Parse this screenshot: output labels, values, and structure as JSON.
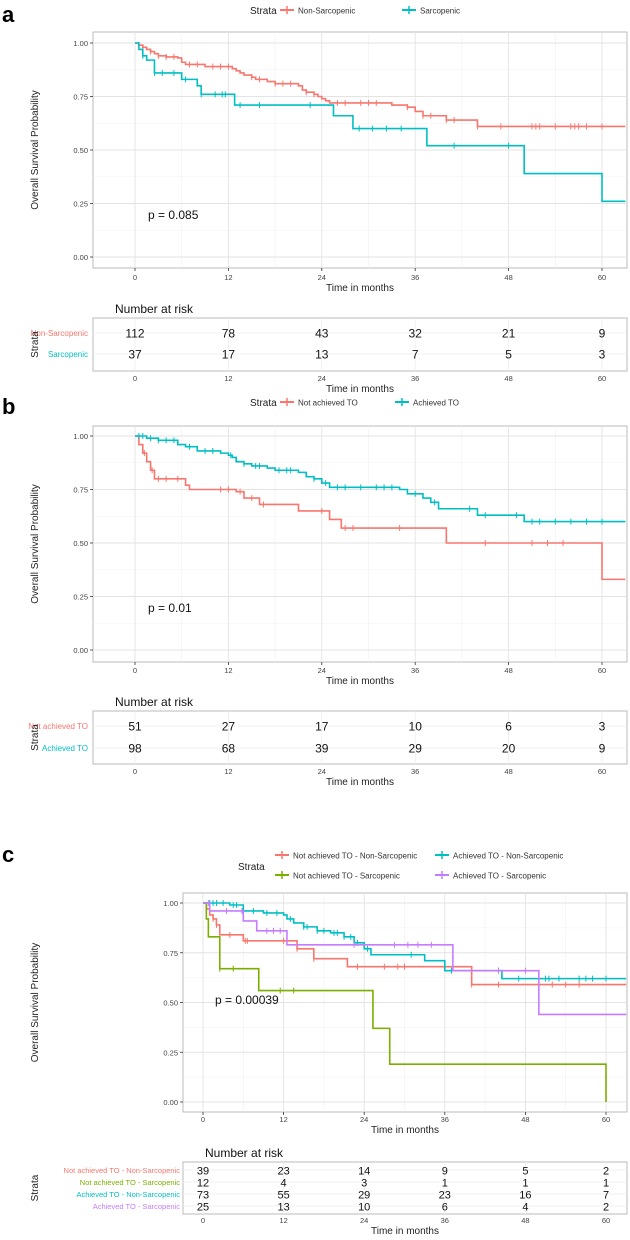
{
  "chart_data": [
    {
      "panel": "a",
      "type": "line",
      "subtype": "kaplan-meier",
      "legend_title": "Strata",
      "xlabel": "Time in months",
      "ylabel": "Overall Survival Probability",
      "xticks": [
        0,
        12,
        24,
        36,
        48,
        60
      ],
      "yticks": [
        "0.00",
        "0.25",
        "0.50",
        "0.75",
        "1.00"
      ],
      "xlim": [
        0,
        63
      ],
      "ylim": [
        0,
        1
      ],
      "pvalue": "p = 0.085",
      "series": [
        {
          "name": "Non-Sarcopenic",
          "color": "#F8766D",
          "steps": [
            [
              0,
              1
            ],
            [
              0.5,
              0.99
            ],
            [
              1,
              0.98
            ],
            [
              1.5,
              0.97
            ],
            [
              2,
              0.96
            ],
            [
              2.5,
              0.95
            ],
            [
              3,
              0.94
            ],
            [
              4,
              0.935
            ],
            [
              5.5,
              0.93
            ],
            [
              6,
              0.91
            ],
            [
              6.5,
              0.9
            ],
            [
              9,
              0.89
            ],
            [
              12.5,
              0.88
            ],
            [
              13,
              0.87
            ],
            [
              13.5,
              0.86
            ],
            [
              14,
              0.85
            ],
            [
              15,
              0.84
            ],
            [
              15.5,
              0.83
            ],
            [
              17,
              0.82
            ],
            [
              18,
              0.81
            ],
            [
              21,
              0.8
            ],
            [
              21.5,
              0.78
            ],
            [
              22,
              0.77
            ],
            [
              23,
              0.76
            ],
            [
              23.5,
              0.75
            ],
            [
              24,
              0.74
            ],
            [
              24.5,
              0.73
            ],
            [
              25,
              0.72
            ],
            [
              33,
              0.71
            ],
            [
              35,
              0.7
            ],
            [
              36,
              0.68
            ],
            [
              37,
              0.66
            ],
            [
              40,
              0.64
            ],
            [
              44,
              0.61
            ]
          ],
          "censor": [
            1,
            2,
            3,
            4,
            5,
            7,
            8,
            10,
            11,
            12,
            15,
            16,
            18,
            19,
            20,
            22,
            23,
            26,
            27,
            29,
            30,
            31,
            35,
            37,
            38,
            40,
            41,
            44,
            47,
            51,
            51.5,
            52,
            54,
            56,
            56.5,
            57,
            58,
            60
          ]
        },
        {
          "name": "Sarcopenic",
          "color": "#00BFC4",
          "steps": [
            [
              0,
              1
            ],
            [
              0.5,
              0.97
            ],
            [
              1,
              0.94
            ],
            [
              1.5,
              0.92
            ],
            [
              2.5,
              0.86
            ],
            [
              6,
              0.83
            ],
            [
              8,
              0.8
            ],
            [
              8.5,
              0.76
            ],
            [
              12.8,
              0.71
            ],
            [
              25.5,
              0.66
            ],
            [
              28,
              0.6
            ],
            [
              37.5,
              0.52
            ],
            [
              50,
              0.39
            ],
            [
              60,
              0.26
            ]
          ],
          "censor": [
            1,
            2.5,
            3.5,
            5,
            6.5,
            8.5,
            10.3,
            11.2,
            11.6,
            13.5,
            16,
            22.5,
            28.8,
            30.5,
            32.3,
            34.2,
            41,
            48
          ]
        }
      ],
      "risk_table": {
        "title": "Number at risk",
        "ylabel": "Strata",
        "xlabel": "Time in months",
        "rows": [
          {
            "label": "Non-Sarcopenic",
            "values": [
              112,
              78,
              43,
              32,
              21,
              9
            ]
          },
          {
            "label": "Sarcopenic",
            "values": [
              37,
              17,
              13,
              7,
              5,
              3
            ]
          }
        ]
      }
    },
    {
      "panel": "b",
      "type": "line",
      "subtype": "kaplan-meier",
      "legend_title": "Strata",
      "xlabel": "Time in months",
      "ylabel": "Overall Survival Probability",
      "xticks": [
        0,
        12,
        24,
        36,
        48,
        60
      ],
      "yticks": [
        "0.00",
        "0.25",
        "0.50",
        "0.75",
        "1.00"
      ],
      "xlim": [
        0,
        63
      ],
      "ylim": [
        0,
        1
      ],
      "pvalue": "p = 0.01",
      "series": [
        {
          "name": "Not achieved TO",
          "color": "#F8766D",
          "steps": [
            [
              0,
              1
            ],
            [
              0.5,
              0.96
            ],
            [
              1,
              0.92
            ],
            [
              1.5,
              0.88
            ],
            [
              2,
              0.84
            ],
            [
              2.5,
              0.8
            ],
            [
              6.5,
              0.77
            ],
            [
              7,
              0.75
            ],
            [
              13,
              0.74
            ],
            [
              14,
              0.71
            ],
            [
              16,
              0.68
            ],
            [
              21,
              0.65
            ],
            [
              25,
              0.61
            ],
            [
              26.5,
              0.57
            ],
            [
              40,
              0.5
            ],
            [
              60,
              0.33
            ]
          ],
          "censor": [
            1.2,
            2.2,
            3,
            4,
            5.5,
            11,
            12,
            13.5,
            15,
            16.5,
            24,
            27,
            28,
            34,
            45,
            51,
            53,
            55
          ]
        },
        {
          "name": "Achieved TO",
          "color": "#00BFC4",
          "steps": [
            [
              0,
              1
            ],
            [
              1.5,
              0.99
            ],
            [
              3,
              0.98
            ],
            [
              5.5,
              0.96
            ],
            [
              6.5,
              0.95
            ],
            [
              8,
              0.93
            ],
            [
              11,
              0.92
            ],
            [
              12,
              0.91
            ],
            [
              12.5,
              0.9
            ],
            [
              13,
              0.88
            ],
            [
              14,
              0.87
            ],
            [
              15,
              0.86
            ],
            [
              17,
              0.85
            ],
            [
              18,
              0.84
            ],
            [
              21,
              0.83
            ],
            [
              22,
              0.81
            ],
            [
              23,
              0.8
            ],
            [
              24,
              0.78
            ],
            [
              25,
              0.76
            ],
            [
              34,
              0.75
            ],
            [
              35,
              0.73
            ],
            [
              37,
              0.71
            ],
            [
              38,
              0.69
            ],
            [
              39,
              0.66
            ],
            [
              44,
              0.63
            ],
            [
              50,
              0.6
            ]
          ],
          "censor": [
            0.5,
            1,
            2,
            3,
            4,
            5,
            7,
            9,
            10,
            12.3,
            14,
            15.5,
            16,
            18.5,
            19.5,
            20,
            23,
            24.5,
            26,
            27,
            29,
            31,
            32,
            33,
            36,
            38.5,
            43,
            45,
            49,
            51,
            52,
            54,
            56,
            58,
            60
          ]
        }
      ],
      "risk_table": {
        "title": "Number at risk",
        "ylabel": "Strata",
        "xlabel": "Time in months",
        "rows": [
          {
            "label": "Not achieved TO",
            "values": [
              51,
              27,
              17,
              10,
              6,
              3
            ]
          },
          {
            "label": "Achieved TO",
            "values": [
              98,
              68,
              39,
              29,
              20,
              9
            ]
          }
        ]
      }
    },
    {
      "panel": "c",
      "type": "line",
      "subtype": "kaplan-meier",
      "legend_title": "Strata",
      "xlabel": "Time in months",
      "ylabel": "Overall Survival Probability",
      "xticks": [
        0,
        12,
        24,
        36,
        48,
        60
      ],
      "yticks": [
        "0.00",
        "0.25",
        "0.50",
        "0.75",
        "1.00"
      ],
      "xlim": [
        0,
        63
      ],
      "ylim": [
        0,
        1
      ],
      "pvalue": "p = 0.00039",
      "series": [
        {
          "name": "Not achieved TO - Non-Sarcopenic",
          "color": "#F8766D",
          "steps": [
            [
              0,
              1
            ],
            [
              0.5,
              0.97
            ],
            [
              1,
              0.94
            ],
            [
              1.5,
              0.92
            ],
            [
              2,
              0.89
            ],
            [
              2.5,
              0.84
            ],
            [
              6,
              0.81
            ],
            [
              14,
              0.77
            ],
            [
              16.5,
              0.72
            ],
            [
              21.5,
              0.68
            ],
            [
              40,
              0.59
            ]
          ],
          "censor": [
            1.5,
            2,
            4,
            6.3,
            6.6,
            12,
            14,
            16.5,
            23,
            27,
            29,
            30,
            36,
            40,
            44,
            52,
            54,
            56
          ]
        },
        {
          "name": "Not achieved TO - Sarcopenic",
          "color": "#7CAE00",
          "steps": [
            [
              0,
              1
            ],
            [
              0.5,
              0.92
            ],
            [
              0.8,
              0.83
            ],
            [
              2.5,
              0.67
            ],
            [
              8.3,
              0.56
            ],
            [
              25.3,
              0.37
            ],
            [
              27.8,
              0.19
            ],
            [
              60,
              0
            ]
          ],
          "censor": [
            2.5,
            4.5,
            11.5,
            13.5
          ]
        },
        {
          "name": "Achieved TO - Non-Sarcopenic",
          "color": "#00BFC4",
          "steps": [
            [
              0,
              1
            ],
            [
              4,
              0.99
            ],
            [
              6,
              0.96
            ],
            [
              9,
              0.95
            ],
            [
              12,
              0.94
            ],
            [
              12.5,
              0.92
            ],
            [
              13.5,
              0.9
            ],
            [
              15,
              0.88
            ],
            [
              17,
              0.86
            ],
            [
              19,
              0.85
            ],
            [
              21,
              0.83
            ],
            [
              22.5,
              0.8
            ],
            [
              24,
              0.77
            ],
            [
              25,
              0.74
            ],
            [
              33,
              0.71
            ],
            [
              36,
              0.66
            ],
            [
              44.5,
              0.62
            ]
          ],
          "censor": [
            1,
            1.5,
            2,
            3,
            4.5,
            5,
            7.5,
            9.5,
            11,
            13,
            15,
            15.5,
            17,
            18,
            19.5,
            20,
            21,
            22,
            23,
            24.5,
            31,
            37,
            44,
            47,
            51,
            51.5,
            53,
            56,
            57,
            58,
            60
          ]
        },
        {
          "name": "Achieved TO - Sarcopenic",
          "color": "#C77CFF",
          "steps": [
            [
              0,
              1
            ],
            [
              1,
              0.96
            ],
            [
              6,
              0.91
            ],
            [
              8,
              0.86
            ],
            [
              12.5,
              0.79
            ],
            [
              37.2,
              0.66
            ],
            [
              50,
              0.44
            ]
          ],
          "censor": [
            0.8,
            3.5,
            5.8,
            9.5,
            10.5,
            11.5,
            22.5,
            28.5,
            30.5,
            32,
            34,
            44,
            48
          ]
        }
      ],
      "risk_table": {
        "title": "Number at risk",
        "ylabel": "Strata",
        "xlabel": "Time in months",
        "rows": [
          {
            "label": "Not achieved TO - Non-Sarcopenic",
            "values": [
              39,
              23,
              14,
              9,
              5,
              2
            ]
          },
          {
            "label": "Not achieved TO - Sarcopenic",
            "values": [
              12,
              4,
              3,
              1,
              1,
              1
            ]
          },
          {
            "label": "Achieved TO - Non-Sarcopenic",
            "values": [
              73,
              55,
              29,
              23,
              16,
              7
            ]
          },
          {
            "label": "Achieved TO - Sarcopenic",
            "values": [
              25,
              13,
              10,
              6,
              4,
              2
            ]
          }
        ]
      }
    }
  ]
}
